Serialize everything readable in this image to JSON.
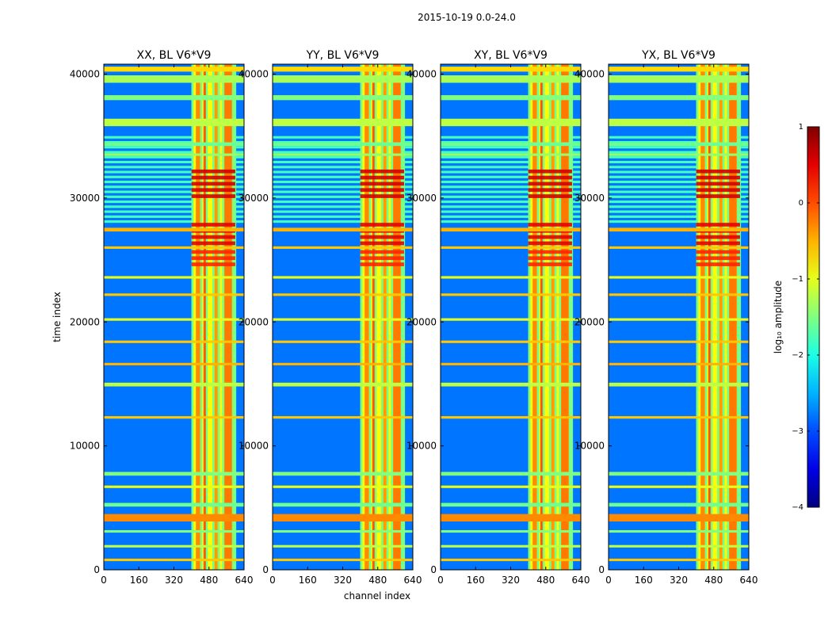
{
  "chart_data": {
    "type": "heatmap",
    "suptitle": "2015-10-19 0.0-24.0",
    "xlabel": "channel index",
    "ylabel": "time index",
    "xlim": [
      0,
      640
    ],
    "ylim": [
      0,
      40800
    ],
    "xticks": [
      0,
      160,
      320,
      480,
      640
    ],
    "yticks": [
      0,
      10000,
      20000,
      30000,
      40000
    ],
    "panels": [
      {
        "title": "XX, BL V6*V9",
        "polarization": "XX"
      },
      {
        "title": "YY, BL V6*V9",
        "polarization": "YY"
      },
      {
        "title": "XY, BL V6*V9",
        "polarization": "XY"
      },
      {
        "title": "YX, BL V6*V9",
        "polarization": "YX"
      }
    ],
    "colorbar": {
      "label": "log₁₀ amplitude",
      "range": [
        -4,
        1
      ],
      "ticks": [
        1,
        0,
        -1,
        -2,
        -3,
        -4
      ],
      "colormap": "jet"
    },
    "background_level": -2.8,
    "rfi_channel_band": {
      "start": 400,
      "end": 600,
      "level": -0.9
    },
    "rfi_channel_lines": [
      405,
      445,
      470,
      500,
      525,
      545,
      590,
      600
    ],
    "rfi_channel_hot": [
      {
        "from": 420,
        "to": 440,
        "level": -0.2
      },
      {
        "from": 455,
        "to": 468,
        "level": 0.1
      },
      {
        "from": 505,
        "to": 520,
        "level": -0.3
      },
      {
        "from": 550,
        "to": 585,
        "level": -0.1
      }
    ],
    "time_flag_bands": [
      {
        "from": 40200,
        "to": 40600,
        "level": -0.7
      },
      {
        "from": 39300,
        "to": 39900,
        "level": -1.3
      },
      {
        "from": 37900,
        "to": 38300,
        "level": -1.5
      },
      {
        "from": 35800,
        "to": 36400,
        "level": -1.2
      },
      {
        "from": 34200,
        "to": 34500,
        "level": -1.6
      },
      {
        "from": 33400,
        "to": 33600,
        "level": -1.4
      },
      {
        "from": 27300,
        "to": 27600,
        "level": -0.5
      },
      {
        "from": 25900,
        "to": 26100,
        "level": -0.6
      },
      {
        "from": 23500,
        "to": 23700,
        "level": -1.0
      },
      {
        "from": 22100,
        "to": 22300,
        "level": -0.6
      },
      {
        "from": 20100,
        "to": 20300,
        "level": -1.0
      },
      {
        "from": 18300,
        "to": 18500,
        "level": -0.6
      },
      {
        "from": 16500,
        "to": 16700,
        "level": -0.5
      },
      {
        "from": 14800,
        "to": 15100,
        "level": -1.2
      },
      {
        "from": 12200,
        "to": 12400,
        "level": -0.6
      },
      {
        "from": 7600,
        "to": 7900,
        "level": -1.5
      },
      {
        "from": 6600,
        "to": 6800,
        "level": -1.0
      },
      {
        "from": 5100,
        "to": 5400,
        "level": -1.6
      },
      {
        "from": 3900,
        "to": 4500,
        "level": -0.3
      },
      {
        "from": 3000,
        "to": 3200,
        "level": -1.5
      },
      {
        "from": 1800,
        "to": 2000,
        "level": -1.2
      },
      {
        "from": 700,
        "to": 900,
        "level": -0.6
      }
    ],
    "time_hot_bands": [
      {
        "from": 30000,
        "to": 32500,
        "level": 0.6
      },
      {
        "from": 26200,
        "to": 27800,
        "level": 0.5
      },
      {
        "from": 24500,
        "to": 25800,
        "level": 0.2
      }
    ],
    "time_striped_region": {
      "from": 28000,
      "to": 35000,
      "level": -1.8
    }
  }
}
